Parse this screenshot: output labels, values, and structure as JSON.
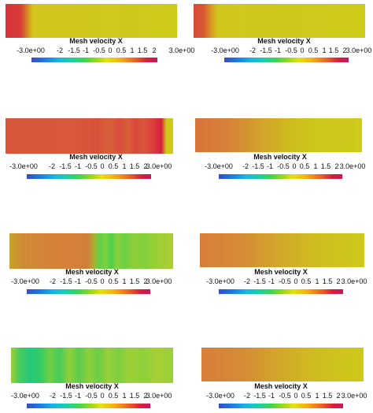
{
  "panels": [
    {
      "title": "Mesh velocity X",
      "ticks": [
        "-3.0e+00",
        "-2",
        "-1.5",
        "-1",
        "-0.5",
        "0",
        "0.5",
        "1",
        "1.5",
        "2",
        "3.0e+00"
      ]
    },
    {
      "title": "Mesh velocity X",
      "ticks": [
        "-3.0e+00",
        "-2",
        "-1.5",
        "-1",
        "-0.5",
        "0",
        "0.5",
        "1",
        "1.5",
        "2",
        "3.0e+00"
      ]
    },
    {
      "title": "Mesh velocity X",
      "ticks": [
        "-3.0e+00",
        "-2",
        "-1.5",
        "-1",
        "-0.5",
        "0",
        "0.5",
        "1",
        "1.5",
        "2",
        "3.0e+00"
      ]
    },
    {
      "title": "Mesh velocity X",
      "ticks": [
        "-3.0e+00",
        "-2",
        "-1.5",
        "-1",
        "-0.5",
        "0",
        "0.5",
        "1",
        "1.5",
        "2",
        "3.0e+00"
      ]
    },
    {
      "title": "Mesh velocity X",
      "ticks": [
        "-3.0e+00",
        "-2",
        "-1.5",
        "-1",
        "-0.5",
        "0",
        "0.5",
        "1",
        "1.5",
        "2",
        "3.0e+00"
      ]
    },
    {
      "title": "Mesh velocity X",
      "ticks": [
        "-3.0e+00",
        "-2",
        "-1.5",
        "-1",
        "-0.5",
        "0",
        "0.5",
        "1",
        "1.5",
        "2",
        "3.0e+00"
      ]
    },
    {
      "title": "Mesh velocity X",
      "ticks": [
        "-3.0e+00",
        "-2",
        "-1.5",
        "-1",
        "-0.5",
        "0",
        "0.5",
        "1",
        "1.5",
        "2",
        "3.0e+00"
      ]
    },
    {
      "title": "Mesh velocity X",
      "ticks": [
        "-3.0e+00",
        "-2",
        "-1.5",
        "-1",
        "-0.5",
        "0",
        "0.5",
        "1",
        "1.5",
        "2",
        "3.0e+00"
      ]
    }
  ],
  "colormap": {
    "min": -3.0,
    "max": 3.0,
    "colors": [
      "#3a4cc0",
      "#1b78e8",
      "#17b5e6",
      "#3bd64e",
      "#e4e10f",
      "#ee6520",
      "#c8175e"
    ]
  }
}
